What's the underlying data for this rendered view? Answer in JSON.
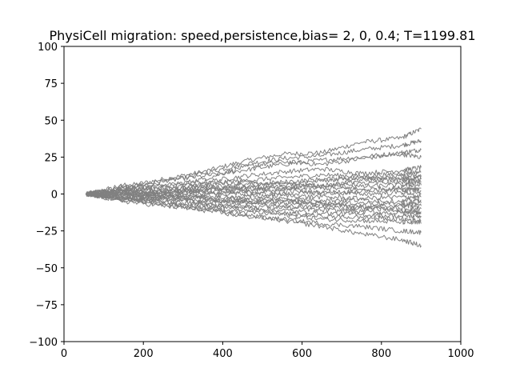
{
  "chart_data": {
    "type": "line",
    "title": "PhysiCell migration: speed,persistence,bias= 2, 0, 0.4; T=1199.81",
    "xlabel": "",
    "ylabel": "",
    "xlim": [
      0,
      1000
    ],
    "ylim": [
      -100,
      100
    ],
    "xticks": [
      0,
      200,
      400,
      600,
      800,
      1000
    ],
    "yticks": [
      -100,
      -75,
      -50,
      -25,
      0,
      25,
      50,
      75,
      100
    ],
    "xtick_labels": [
      "0",
      "200",
      "400",
      "600",
      "800",
      "1000"
    ],
    "ytick_labels": [
      "−100",
      "−75",
      "−50",
      "−25",
      "0",
      "25",
      "50",
      "75",
      "100"
    ],
    "grid": false,
    "legend": "none",
    "line_color": "#808080",
    "series": [
      {
        "x": [
          55,
          150,
          250,
          350,
          450,
          550,
          650,
          750,
          850,
          900
        ],
        "y": [
          0,
          5,
          10,
          15,
          22,
          27,
          28,
          35,
          38,
          44
        ]
      },
      {
        "x": [
          55,
          150,
          250,
          350,
          450,
          550,
          650,
          750,
          850,
          900
        ],
        "y": [
          0,
          3,
          8,
          14,
          20,
          24,
          26,
          30,
          33,
          36
        ]
      },
      {
        "x": [
          55,
          150,
          250,
          350,
          450,
          550,
          650,
          750,
          850,
          900
        ],
        "y": [
          0,
          4,
          9,
          12,
          16,
          20,
          23,
          25,
          28,
          30
        ]
      },
      {
        "x": [
          55,
          150,
          250,
          350,
          450,
          550,
          650,
          750,
          850,
          900
        ],
        "y": [
          0,
          6,
          5,
          10,
          18,
          22,
          20,
          24,
          27,
          25
        ]
      },
      {
        "x": [
          55,
          150,
          250,
          350,
          450,
          550,
          650,
          750,
          850,
          900
        ],
        "y": [
          0,
          2,
          6,
          8,
          12,
          15,
          17,
          14,
          16,
          18
        ]
      },
      {
        "x": [
          55,
          150,
          250,
          350,
          450,
          550,
          650,
          750,
          850,
          900
        ],
        "y": [
          0,
          3,
          4,
          7,
          9,
          11,
          13,
          12,
          14,
          15
        ]
      },
      {
        "x": [
          55,
          150,
          250,
          350,
          450,
          550,
          650,
          750,
          850,
          900
        ],
        "y": [
          0,
          1,
          3,
          5,
          6,
          8,
          10,
          11,
          12,
          12
        ]
      },
      {
        "x": [
          55,
          150,
          250,
          350,
          450,
          550,
          650,
          750,
          850,
          900
        ],
        "y": [
          0,
          2,
          1,
          4,
          5,
          7,
          6,
          9,
          10,
          10
        ]
      },
      {
        "x": [
          55,
          150,
          250,
          350,
          450,
          550,
          650,
          750,
          850,
          900
        ],
        "y": [
          0,
          1,
          2,
          2,
          4,
          5,
          6,
          7,
          8,
          8
        ]
      },
      {
        "x": [
          55,
          150,
          250,
          350,
          450,
          550,
          650,
          750,
          850,
          900
        ],
        "y": [
          0,
          0,
          1,
          3,
          3,
          4,
          5,
          5,
          6,
          6
        ]
      },
      {
        "x": [
          55,
          150,
          250,
          350,
          450,
          550,
          650,
          750,
          850,
          900
        ],
        "y": [
          0,
          -1,
          1,
          2,
          2,
          3,
          4,
          3,
          4,
          4
        ]
      },
      {
        "x": [
          55,
          150,
          250,
          350,
          450,
          550,
          650,
          750,
          850,
          900
        ],
        "y": [
          0,
          1,
          -1,
          0,
          1,
          2,
          1,
          2,
          3,
          2
        ]
      },
      {
        "x": [
          55,
          150,
          250,
          350,
          450,
          550,
          650,
          750,
          850,
          900
        ],
        "y": [
          0,
          0,
          0,
          1,
          0,
          0,
          1,
          0,
          1,
          0
        ]
      },
      {
        "x": [
          55,
          150,
          250,
          350,
          450,
          550,
          650,
          750,
          850,
          900
        ],
        "y": [
          0,
          -1,
          -2,
          -1,
          -2,
          -1,
          -2,
          -3,
          -2,
          -2
        ]
      },
      {
        "x": [
          55,
          150,
          250,
          350,
          450,
          550,
          650,
          750,
          850,
          900
        ],
        "y": [
          0,
          1,
          -1,
          -2,
          -3,
          -3,
          -4,
          -4,
          -5,
          -4
        ]
      },
      {
        "x": [
          55,
          150,
          250,
          350,
          450,
          550,
          650,
          750,
          850,
          900
        ],
        "y": [
          0,
          -2,
          -3,
          -3,
          -4,
          -5,
          -6,
          -6,
          -7,
          -6
        ]
      },
      {
        "x": [
          55,
          150,
          250,
          350,
          450,
          550,
          650,
          750,
          850,
          900
        ],
        "y": [
          0,
          -1,
          -2,
          -4,
          -5,
          -6,
          -7,
          -8,
          -8,
          -8
        ]
      },
      {
        "x": [
          55,
          150,
          250,
          350,
          450,
          550,
          650,
          750,
          850,
          900
        ],
        "y": [
          0,
          -2,
          -4,
          -5,
          -6,
          -8,
          -9,
          -10,
          -10,
          -10
        ]
      },
      {
        "x": [
          55,
          150,
          250,
          350,
          450,
          550,
          650,
          750,
          850,
          900
        ],
        "y": [
          0,
          -3,
          -3,
          -6,
          -8,
          -9,
          -11,
          -12,
          -13,
          -12
        ]
      },
      {
        "x": [
          55,
          150,
          250,
          350,
          450,
          550,
          650,
          750,
          850,
          900
        ],
        "y": [
          0,
          -2,
          -5,
          -7,
          -9,
          -11,
          -13,
          -14,
          -15,
          -15
        ]
      },
      {
        "x": [
          55,
          150,
          250,
          350,
          450,
          550,
          650,
          750,
          850,
          900
        ],
        "y": [
          0,
          -4,
          -6,
          -8,
          -10,
          -13,
          -15,
          -16,
          -17,
          -18
        ]
      },
      {
        "x": [
          55,
          150,
          250,
          350,
          450,
          550,
          650,
          750,
          850,
          900
        ],
        "y": [
          0,
          -3,
          -7,
          -10,
          -12,
          -14,
          -17,
          -18,
          -19,
          -20
        ]
      },
      {
        "x": [
          55,
          150,
          250,
          350,
          450,
          550,
          650,
          750,
          850,
          900
        ],
        "y": [
          0,
          -5,
          -8,
          -11,
          -15,
          -17,
          -20,
          -22,
          -25,
          -26
        ]
      },
      {
        "x": [
          55,
          150,
          250,
          350,
          450,
          550,
          650,
          750,
          850,
          900
        ],
        "y": [
          0,
          -3,
          -6,
          -9,
          -14,
          -18,
          -22,
          -27,
          -31,
          -35
        ]
      },
      {
        "x": [
          55,
          150,
          250,
          350,
          450,
          550,
          650,
          750,
          850,
          900
        ],
        "y": [
          0,
          4,
          2,
          6,
          8,
          6,
          9,
          11,
          10,
          12
        ]
      },
      {
        "x": [
          55,
          150,
          250,
          350,
          450,
          550,
          650,
          750,
          850,
          900
        ],
        "y": [
          0,
          -4,
          -1,
          -3,
          -6,
          -4,
          -7,
          -9,
          -11,
          -13
        ]
      }
    ]
  }
}
